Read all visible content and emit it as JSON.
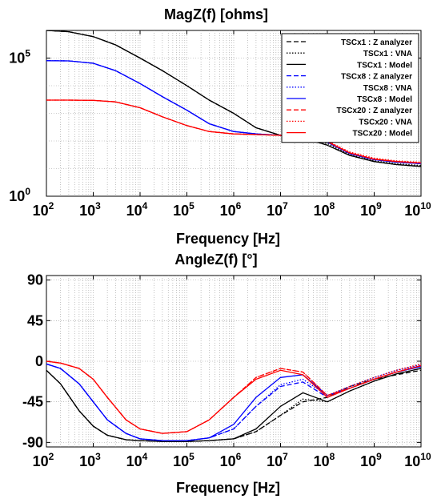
{
  "chart_data": [
    {
      "type": "line",
      "title": "MagZ(f) [ohms]",
      "xlabel": "Frequency [Hz]",
      "ylabel": "",
      "xscale": "log",
      "yscale": "log",
      "xlim": [
        100,
        10000000000
      ],
      "ylim": [
        1,
        1000000
      ],
      "x_ticks": [
        {
          "base": "10",
          "exp": "2",
          "value": 100
        },
        {
          "base": "10",
          "exp": "3",
          "value": 1000
        },
        {
          "base": "10",
          "exp": "4",
          "value": 10000
        },
        {
          "base": "10",
          "exp": "5",
          "value": 100000
        },
        {
          "base": "10",
          "exp": "6",
          "value": 1000000
        },
        {
          "base": "10",
          "exp": "7",
          "value": 10000000
        },
        {
          "base": "10",
          "exp": "8",
          "value": 100000000
        },
        {
          "base": "10",
          "exp": "9",
          "value": 1000000000
        },
        {
          "base": "10",
          "exp": "10",
          "value": 10000000000
        }
      ],
      "y_ticks": [
        {
          "base": "10",
          "exp": "0",
          "value": 1
        },
        {
          "base": "10",
          "exp": "5",
          "value": 100000
        }
      ],
      "grid": true,
      "legend_position": "top-right",
      "x": [
        100,
        300,
        1000,
        3000,
        10000,
        30000,
        100000,
        300000,
        1000000,
        3000000,
        10000000,
        30000000,
        100000000,
        300000000,
        1000000000,
        3000000000,
        10000000000
      ],
      "series": [
        {
          "name": "TSCx1 : Z analyzer",
          "color": "#000000",
          "dash": "dashed",
          "values": [
            1000000,
            900000,
            600000,
            300000,
            100000,
            35000,
            10000,
            3000,
            1000,
            300,
            160,
            130,
            70,
            30,
            18,
            14,
            12
          ]
        },
        {
          "name": "TSCx1 : VNA",
          "color": "#000000",
          "dash": "dotted",
          "values": [
            1000000,
            900000,
            600000,
            300000,
            100000,
            35000,
            10000,
            3000,
            1000,
            300,
            160,
            130,
            80,
            32,
            19,
            15,
            13
          ]
        },
        {
          "name": "TSCx1 : Model",
          "color": "#000000",
          "dash": "solid",
          "values": [
            1000000,
            900000,
            600000,
            300000,
            100000,
            35000,
            10000,
            3000,
            1000,
            300,
            160,
            130,
            70,
            30,
            18,
            14,
            12
          ]
        },
        {
          "name": "TSCx8 : Z analyzer",
          "color": "#0000ff",
          "dash": "dashed",
          "values": [
            80000,
            79000,
            65000,
            35000,
            12000,
            4000,
            1300,
            420,
            220,
            180,
            160,
            140,
            90,
            35,
            21,
            17,
            15
          ]
        },
        {
          "name": "TSCx8 : VNA",
          "color": "#0000ff",
          "dash": "dotted",
          "values": [
            80000,
            79000,
            65000,
            35000,
            12000,
            4000,
            1300,
            420,
            220,
            180,
            160,
            140,
            95,
            37,
            22,
            18,
            16
          ]
        },
        {
          "name": "TSCx8 : Model",
          "color": "#0000ff",
          "dash": "solid",
          "values": [
            80000,
            79000,
            65000,
            35000,
            12000,
            4000,
            1300,
            420,
            220,
            180,
            160,
            140,
            90,
            35,
            21,
            17,
            15
          ]
        },
        {
          "name": "TSCx20 : Z analyzer",
          "color": "#ff0000",
          "dash": "dashed",
          "values": [
            3000,
            3000,
            2950,
            2600,
            1600,
            750,
            360,
            220,
            180,
            170,
            160,
            145,
            95,
            37,
            22,
            18,
            16
          ]
        },
        {
          "name": "TSCx20 : VNA",
          "color": "#ff0000",
          "dash": "dotted",
          "values": [
            3000,
            3000,
            2950,
            2600,
            1600,
            750,
            360,
            220,
            180,
            170,
            160,
            150,
            100,
            40,
            24,
            19,
            17
          ]
        },
        {
          "name": "TSCx20 : Model",
          "color": "#ff0000",
          "dash": "solid",
          "values": [
            3000,
            3000,
            2950,
            2600,
            1600,
            750,
            360,
            220,
            180,
            170,
            160,
            145,
            95,
            37,
            22,
            18,
            16
          ]
        }
      ]
    },
    {
      "type": "line",
      "title": "AngleZ(f) [°]",
      "xlabel": "Frequency [Hz]",
      "ylabel": "",
      "xscale": "log",
      "xlim": [
        100,
        10000000000
      ],
      "ylim": [
        -95,
        95
      ],
      "x_ticks": [
        {
          "base": "10",
          "exp": "2",
          "value": 100
        },
        {
          "base": "10",
          "exp": "3",
          "value": 1000
        },
        {
          "base": "10",
          "exp": "4",
          "value": 10000
        },
        {
          "base": "10",
          "exp": "5",
          "value": 100000
        },
        {
          "base": "10",
          "exp": "6",
          "value": 1000000
        },
        {
          "base": "10",
          "exp": "7",
          "value": 10000000
        },
        {
          "base": "10",
          "exp": "8",
          "value": 100000000
        },
        {
          "base": "10",
          "exp": "9",
          "value": 1000000000
        },
        {
          "base": "10",
          "exp": "10",
          "value": 10000000000
        }
      ],
      "y_ticks": [
        {
          "label": "90",
          "value": 90
        },
        {
          "label": "45",
          "value": 45
        },
        {
          "label": "0",
          "value": 0
        },
        {
          "label": "-45",
          "value": -45
        },
        {
          "label": "-90",
          "value": -90
        }
      ],
      "grid": true,
      "x": [
        100,
        200,
        500,
        1000,
        2000,
        5000,
        10000,
        30000,
        100000,
        300000,
        1000000,
        3000000,
        10000000,
        30000000,
        100000000,
        300000000,
        1000000000,
        3000000000,
        10000000000
      ],
      "series": [
        {
          "name": "TSCx1 : Z analyzer",
          "color": "#000000",
          "dash": "dashed",
          "values": [
            -10,
            -25,
            -55,
            -72,
            -82,
            -87,
            -88,
            -89,
            -89,
            -88,
            -86,
            -78,
            -60,
            -45,
            -40,
            -28,
            -20,
            -15,
            -10
          ]
        },
        {
          "name": "TSCx1 : VNA",
          "color": "#000000",
          "dash": "dotted",
          "values": [
            -10,
            -25,
            -55,
            -72,
            -82,
            -87,
            -88,
            -89,
            -89,
            -88,
            -86,
            -78,
            -60,
            -42,
            -45,
            -33,
            -22,
            -14,
            -8
          ]
        },
        {
          "name": "TSCx1 : Model",
          "color": "#000000",
          "dash": "solid",
          "values": [
            -10,
            -25,
            -55,
            -72,
            -82,
            -87,
            -88,
            -89,
            -89,
            -88,
            -86,
            -75,
            -50,
            -35,
            -45,
            -33,
            -22,
            -14,
            -8
          ]
        },
        {
          "name": "TSCx8 : Z analyzer",
          "color": "#0000ff",
          "dash": "dashed",
          "values": [
            -3,
            -8,
            -25,
            -45,
            -65,
            -80,
            -86,
            -88,
            -88,
            -85,
            -75,
            -50,
            -28,
            -23,
            -40,
            -30,
            -20,
            -12,
            -5
          ]
        },
        {
          "name": "TSCx8 : VNA",
          "color": "#0000ff",
          "dash": "dotted",
          "values": [
            -3,
            -8,
            -25,
            -45,
            -65,
            -80,
            -86,
            -88,
            -88,
            -85,
            -75,
            -50,
            -26,
            -20,
            -38,
            -28,
            -18,
            -10,
            -4
          ]
        },
        {
          "name": "TSCx8 : Model",
          "color": "#0000ff",
          "dash": "solid",
          "values": [
            -3,
            -8,
            -25,
            -45,
            -65,
            -80,
            -86,
            -88,
            -88,
            -85,
            -70,
            -40,
            -18,
            -15,
            -38,
            -30,
            -20,
            -12,
            -6
          ]
        },
        {
          "name": "TSCx20 : Z analyzer",
          "color": "#ff0000",
          "dash": "dashed",
          "values": [
            0,
            -2,
            -8,
            -20,
            -40,
            -65,
            -75,
            -80,
            -78,
            -65,
            -40,
            -18,
            -8,
            -12,
            -38,
            -30,
            -20,
            -12,
            -5
          ]
        },
        {
          "name": "TSCx20 : VNA",
          "color": "#ff0000",
          "dash": "dotted",
          "values": [
            0,
            -2,
            -8,
            -20,
            -40,
            -65,
            -75,
            -80,
            -78,
            -65,
            -40,
            -18,
            -8,
            -12,
            -38,
            -28,
            -18,
            -10,
            -3
          ]
        },
        {
          "name": "TSCx20 : Model",
          "color": "#ff0000",
          "dash": "solid",
          "values": [
            0,
            -2,
            -8,
            -20,
            -40,
            -65,
            -75,
            -80,
            -78,
            -65,
            -40,
            -20,
            -10,
            -15,
            -40,
            -30,
            -20,
            -12,
            -5
          ]
        }
      ]
    }
  ]
}
